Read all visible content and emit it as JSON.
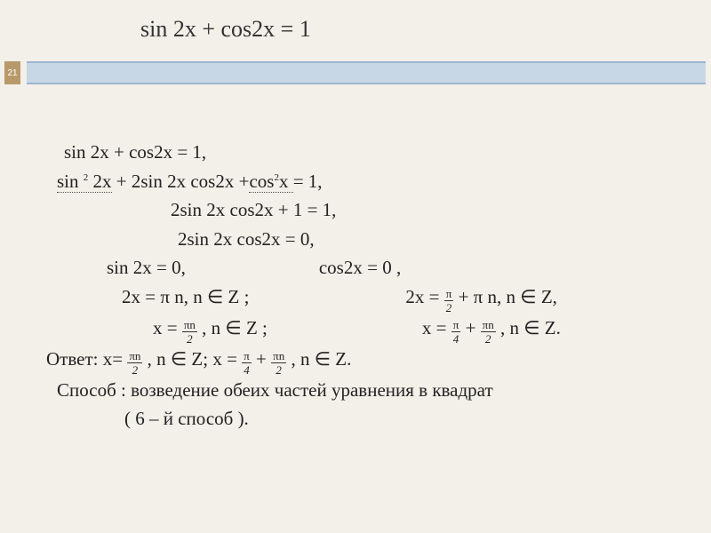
{
  "background_color": "#f3efe9",
  "ribbon_color": "#c8d7e6",
  "ribbon_border_color": "#9bb5ce",
  "page_badge_color": "#b89a6a",
  "page_number": "21",
  "title": "sin 2x + cos2x = 1",
  "lines": {
    "l1": "sin 2x + cos2x = 1,",
    "l2a": "sin ",
    "l2sup1": "2",
    "l2b": " 2х",
    "l2c": " + 2sin 2x cos2x +",
    "l2d": "cos",
    "l2sup2": "2",
    "l2e": "x ",
    "l2f": "= 1,",
    "l3": "2sin 2x cos2x + 1 =  1,",
    "l4": "2sin 2x cos2x = 0,",
    "l5a": "sin 2x = 0,",
    "l5b": "cos2x = 0 ,",
    "l6a": "2x = π n, n ∈  Z ;",
    "l6b": "2x = ",
    "l6c": "  + π n, n ∈  Z,",
    "l7a": "x =",
    "l7b": "   , n ∈  Z ;",
    "l7c": "x  =",
    "l7d": "+",
    "l7e": "   , n ∈  Z.",
    "l8a": "Ответ:  x=",
    "l8b": "   , n ∈  Z;  x = ",
    "l8c": " + ",
    "l8d": "  , n ∈  Z.",
    "l9": "Способ : возведение обеих частей уравнения в квадрат",
    "l10": "( 6 – й способ )."
  },
  "fractions": {
    "pi2": {
      "num": "π",
      "den": "2"
    },
    "pi4": {
      "num": "π",
      "den": "4"
    },
    "pin2": {
      "num": "πn",
      "den": "2"
    }
  }
}
